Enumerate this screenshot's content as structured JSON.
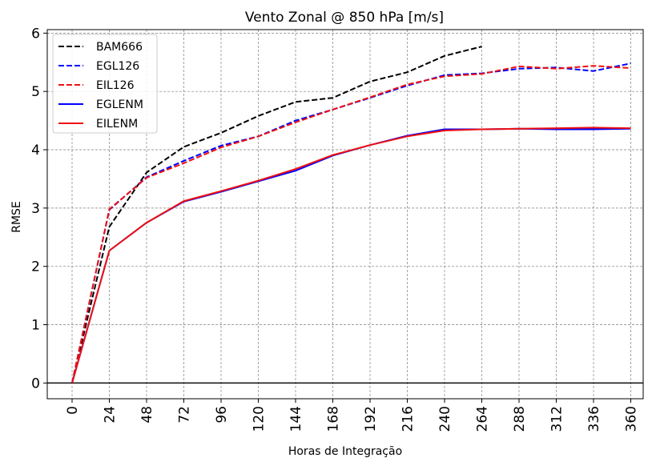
{
  "chart_data": {
    "type": "line",
    "title": "Vento Zonal @ 850 hPa [m/s]",
    "xlabel": "Horas de Integração",
    "ylabel": "RMSE",
    "xlim": [
      -16,
      368
    ],
    "ylim": [
      -0.27,
      6.06
    ],
    "xticks": [
      0,
      24,
      48,
      72,
      96,
      120,
      144,
      168,
      192,
      216,
      240,
      264,
      288,
      312,
      336,
      360
    ],
    "yticks": [
      0,
      1,
      2,
      3,
      4,
      5,
      6
    ],
    "grid": true,
    "legend_position": "top-left",
    "series": [
      {
        "name": "BAM666",
        "color": "#000000",
        "dash": "dashed",
        "x": [
          0,
          24,
          48,
          72,
          96,
          120,
          144,
          168,
          192,
          216,
          240,
          264
        ],
        "values": [
          0,
          2.68,
          3.61,
          4.05,
          4.29,
          4.58,
          4.82,
          4.89,
          5.17,
          5.33,
          5.61,
          5.77
        ]
      },
      {
        "name": "EGL126",
        "color": "#0000ff",
        "dash": "dashed",
        "x": [
          0,
          24,
          48,
          72,
          96,
          120,
          144,
          168,
          192,
          216,
          240,
          264,
          288,
          312,
          336,
          360
        ],
        "values": [
          0,
          2.97,
          3.53,
          3.81,
          4.07,
          4.23,
          4.5,
          4.69,
          4.89,
          5.1,
          5.28,
          5.31,
          5.39,
          5.41,
          5.35,
          5.48
        ]
      },
      {
        "name": "EIL126",
        "color": "#ee1111",
        "dash": "dashed",
        "x": [
          0,
          24,
          48,
          72,
          96,
          120,
          144,
          168,
          192,
          216,
          240,
          264,
          288,
          312,
          336,
          360
        ],
        "values": [
          0,
          2.98,
          3.52,
          3.77,
          4.04,
          4.23,
          4.47,
          4.69,
          4.9,
          5.12,
          5.26,
          5.3,
          5.43,
          5.39,
          5.44,
          5.4
        ]
      },
      {
        "name": "EGLENM",
        "color": "#0000ff",
        "dash": "solid",
        "x": [
          0,
          24,
          48,
          72,
          96,
          120,
          144,
          168,
          192,
          216,
          240,
          264,
          288,
          312,
          336,
          360
        ],
        "values": [
          0,
          2.27,
          2.75,
          3.11,
          3.28,
          3.46,
          3.64,
          3.9,
          4.08,
          4.24,
          4.35,
          4.35,
          4.36,
          4.35,
          4.35,
          4.36
        ]
      },
      {
        "name": "EILENM",
        "color": "#ee1111",
        "dash": "solid",
        "x": [
          0,
          24,
          48,
          72,
          96,
          120,
          144,
          168,
          192,
          216,
          240,
          264,
          288,
          312,
          336,
          360
        ],
        "values": [
          0,
          2.27,
          2.75,
          3.12,
          3.29,
          3.47,
          3.67,
          3.91,
          4.08,
          4.23,
          4.33,
          4.35,
          4.36,
          4.37,
          4.38,
          4.37
        ]
      }
    ]
  }
}
